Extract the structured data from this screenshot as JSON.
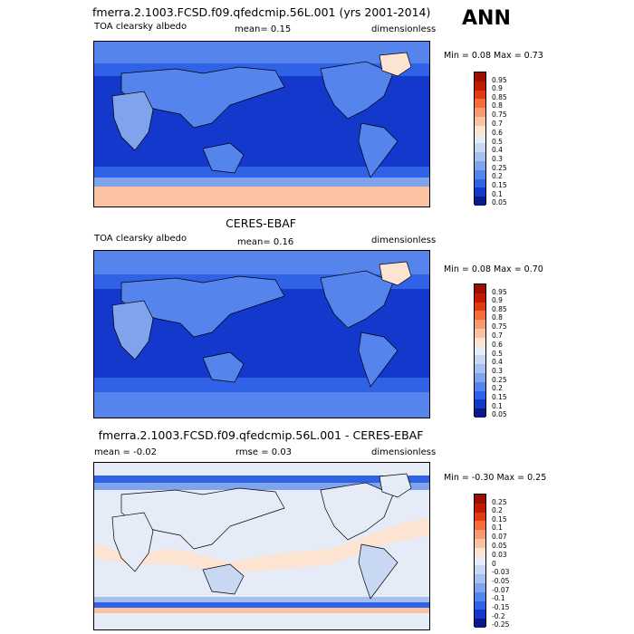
{
  "season": "ANN",
  "panels": [
    {
      "title": "fmerra.2.1003.FCSD.f09.qfedcmip.56L.001 (yrs 2001-2014)",
      "left": "TOA clearsky albedo",
      "mid": "mean=   0.15",
      "right": "dimensionless",
      "minmax": "Min =  0.08 Max =  0.73",
      "levels": [
        "0.95",
        "0.9",
        "0.85",
        "0.8",
        "0.75",
        "0.7",
        "0.6",
        "0.5",
        "0.4",
        "0.3",
        "0.25",
        "0.2",
        "0.15",
        "0.1",
        "0.05"
      ],
      "colors": [
        "#9a0f00",
        "#c21a00",
        "#e23a12",
        "#f56d3a",
        "#f89a70",
        "#fbc2a2",
        "#fde3d2",
        "#e6ecf7",
        "#c9d8f2",
        "#a6c1f0",
        "#7fa4ec",
        "#5584ec",
        "#2f62e6",
        "#1438cc",
        "#081a8c"
      ]
    },
    {
      "title": "CERES-EBAF",
      "left": "TOA clearsky albedo",
      "mid": "mean=   0.16",
      "right": "dimensionless",
      "minmax": "Min =  0.08 Max =   0.70",
      "levels": [
        "0.95",
        "0.9",
        "0.85",
        "0.8",
        "0.75",
        "0.7",
        "0.6",
        "0.5",
        "0.4",
        "0.3",
        "0.25",
        "0.2",
        "0.15",
        "0.1",
        "0.05"
      ],
      "colors": [
        "#9a0f00",
        "#c21a00",
        "#e23a12",
        "#f56d3a",
        "#f89a70",
        "#fbc2a2",
        "#fde3d2",
        "#e6ecf7",
        "#c9d8f2",
        "#a6c1f0",
        "#7fa4ec",
        "#5584ec",
        "#2f62e6",
        "#1438cc",
        "#081a8c"
      ]
    },
    {
      "title": "fmerra.2.1003.FCSD.f09.qfedcmip.56L.001 - CERES-EBAF",
      "left": "mean =  -0.02",
      "mid": "rmse =  0.03",
      "right": "dimensionless",
      "minmax": "Min = -0.30 Max =  0.25",
      "levels": [
        "0.25",
        "0.2",
        "0.15",
        "0.1",
        "0.07",
        "0.05",
        "0.03",
        "0",
        "-0.03",
        "-0.05",
        "-0.07",
        "-0.1",
        "-0.15",
        "-0.2",
        "-0.25"
      ],
      "colors": [
        "#9a0f00",
        "#c21a00",
        "#e23a12",
        "#f56d3a",
        "#f89a70",
        "#fbc2a2",
        "#fde3d2",
        "#e6ecf7",
        "#c9d8f2",
        "#a6c1f0",
        "#7fa4ec",
        "#5584ec",
        "#2f62e6",
        "#1438cc",
        "#081a8c"
      ]
    }
  ]
}
